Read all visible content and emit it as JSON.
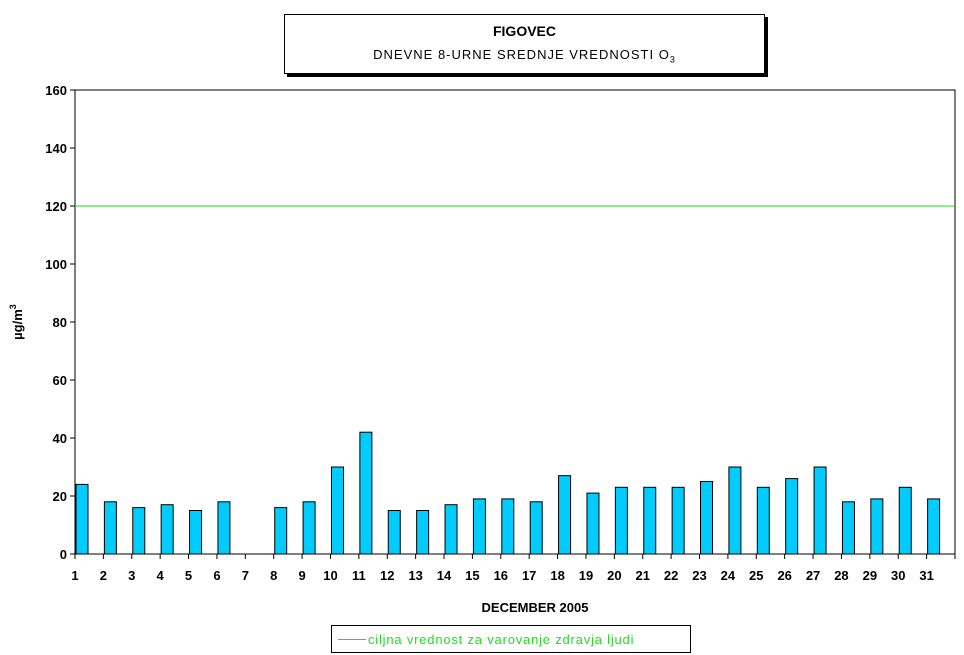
{
  "title": {
    "line1": "FIGOVEC",
    "line2_main": "DNEVNE 8-URNE SREDNJE VREDNOSTI O",
    "line2_sub": "3"
  },
  "legend": {
    "label": "ciljna vrednost za varovanje zdravja ljudi"
  },
  "colors": {
    "bar": "#00ccff",
    "target_line": "#22dd22"
  },
  "chart_data": {
    "type": "bar",
    "title": "FIGOVEC",
    "subtitle": "DNEVNE 8-URNE SREDNJE VREDNOSTI O3",
    "xlabel": "DECEMBER 2005",
    "ylabel": "µg/m3",
    "ylabel_main": "µg/m",
    "ylabel_sup": "3",
    "ylim": [
      0,
      160
    ],
    "yticks": [
      0,
      20,
      40,
      60,
      80,
      100,
      120,
      140,
      160
    ],
    "categories": [
      "1",
      "2",
      "3",
      "4",
      "5",
      "6",
      "7",
      "8",
      "9",
      "10",
      "11",
      "12",
      "13",
      "14",
      "15",
      "16",
      "17",
      "18",
      "19",
      "20",
      "21",
      "22",
      "23",
      "24",
      "25",
      "26",
      "27",
      "28",
      "29",
      "30",
      "31"
    ],
    "series": [
      {
        "values": [
          24,
          18,
          16,
          17,
          15,
          18,
          null,
          16,
          18,
          30,
          42,
          15,
          15,
          17,
          19,
          19,
          18,
          27,
          21,
          23,
          23,
          23,
          25,
          30,
          23,
          26,
          30,
          18,
          19,
          23,
          19
        ]
      }
    ],
    "reference_line": {
      "name": "ciljna vrednost za varovanje zdravja ljudi",
      "value": 120
    },
    "grid": false,
    "legend_position": "bottom"
  }
}
